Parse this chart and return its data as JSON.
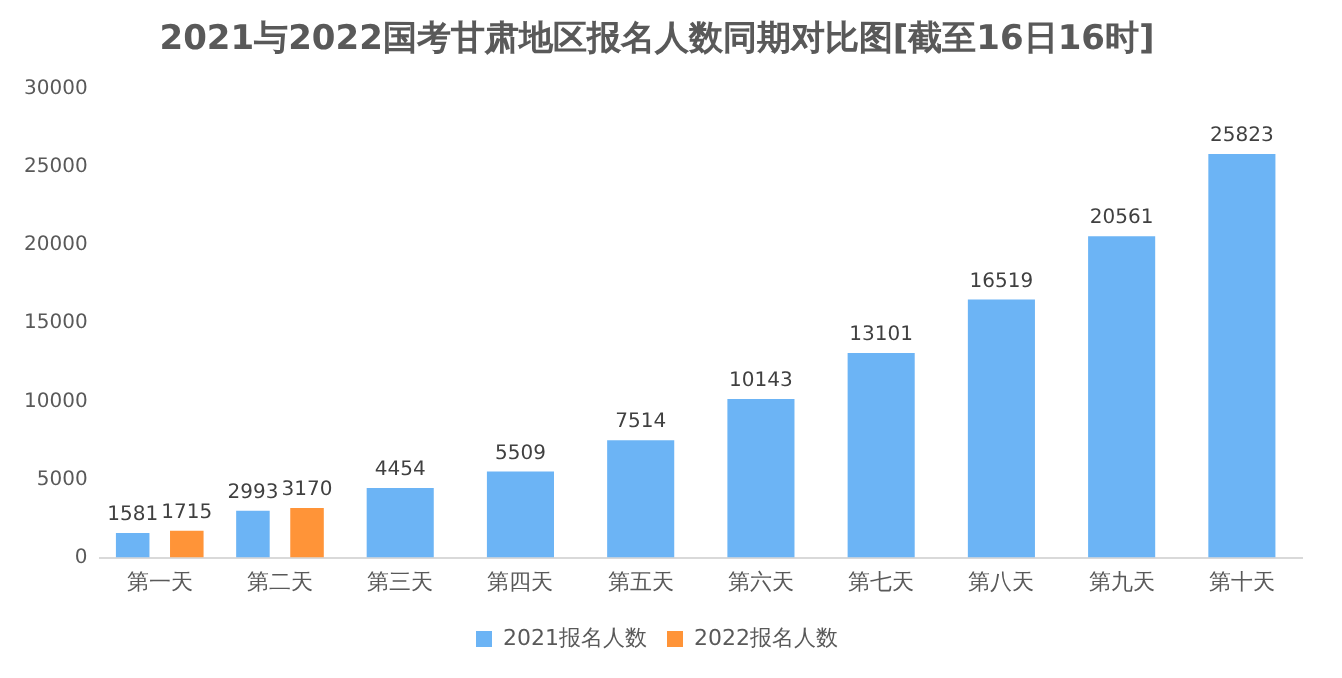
{
  "chart_data": {
    "type": "bar",
    "title": "2021与2022国考甘肃地区报名人数同期对比图[截至16日16时]",
    "categories": [
      "第一天",
      "第二天",
      "第三天",
      "第四天",
      "第五天",
      "第六天",
      "第七天",
      "第八天",
      "第九天",
      "第十天"
    ],
    "series": [
      {
        "name": "2021报名人数",
        "color": "#6cb4f5",
        "values": [
          1581,
          2993,
          4454,
          5509,
          7514,
          10143,
          13101,
          16519,
          20561,
          25823
        ]
      },
      {
        "name": "2022报名人数",
        "color": "#ff9438",
        "values": [
          1715,
          3170,
          null,
          null,
          null,
          null,
          null,
          null,
          null,
          null
        ]
      }
    ],
    "ylim": [
      0,
      30000
    ],
    "yticks": [
      0,
      5000,
      10000,
      15000,
      20000,
      25000,
      30000
    ],
    "grid": false,
    "legend": "bottom",
    "data_labels": true
  }
}
